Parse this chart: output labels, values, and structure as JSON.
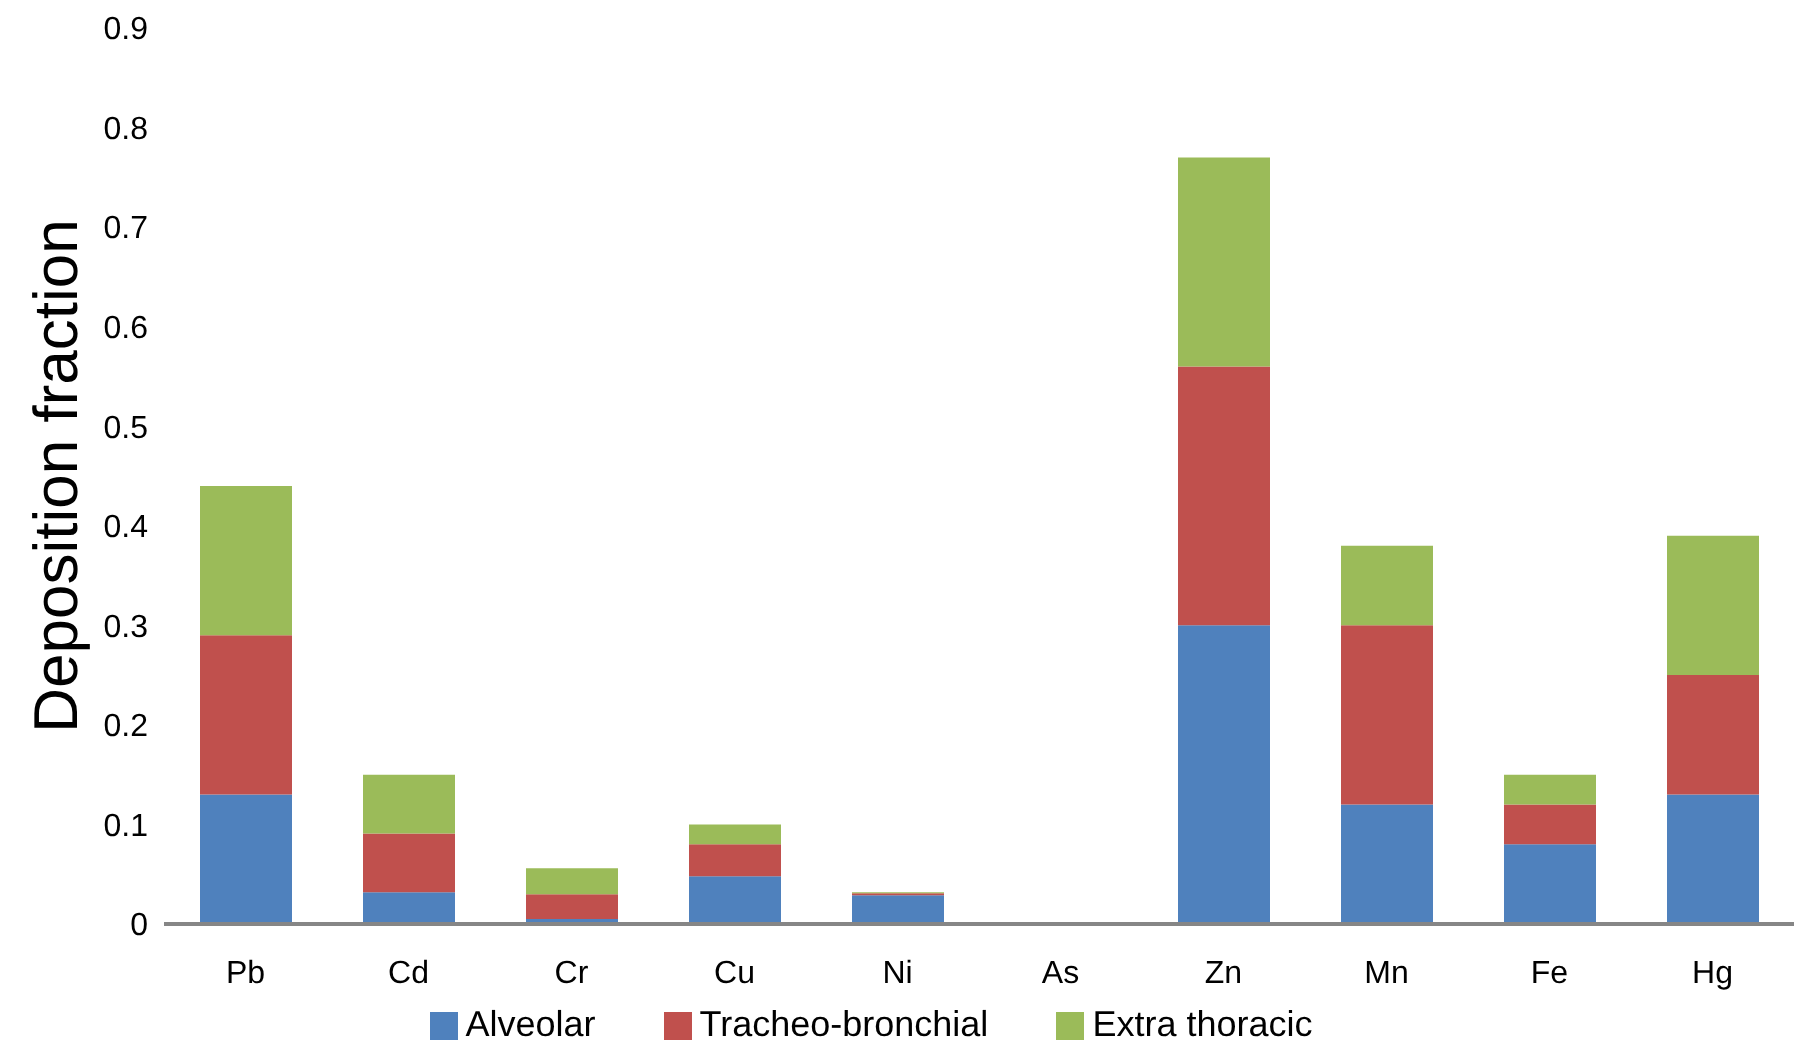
{
  "chart_data": {
    "type": "bar",
    "ylabel": "Deposition fraction",
    "stacked": true,
    "categories": [
      "Pb",
      "Cd",
      "Cr",
      "Cu",
      "Ni",
      "As",
      "Zn",
      "Mn",
      "Fe",
      "Hg"
    ],
    "series": [
      {
        "name": "Alveolar",
        "color": "#4f81bd",
        "values": [
          0.13,
          0.032,
          0.005,
          0.048,
          0.029,
          0,
          0.3,
          0.12,
          0.08,
          0.13
        ]
      },
      {
        "name": "Tracheo-bronchial",
        "color": "#c0504d",
        "values": [
          0.16,
          0.059,
          0.025,
          0.032,
          0.002,
          0,
          0.26,
          0.18,
          0.04,
          0.12
        ]
      },
      {
        "name": "Extra thoracic",
        "color": "#9bbb59",
        "values": [
          0.15,
          0.059,
          0.026,
          0.02,
          0.001,
          0,
          0.21,
          0.08,
          0.03,
          0.14
        ]
      }
    ],
    "ylim": [
      0,
      0.9
    ],
    "yticks": [
      0,
      0.1,
      0.2,
      0.3,
      0.4,
      0.5,
      0.6,
      0.7,
      0.8,
      0.9
    ],
    "grid": false,
    "legend": "bottom"
  }
}
